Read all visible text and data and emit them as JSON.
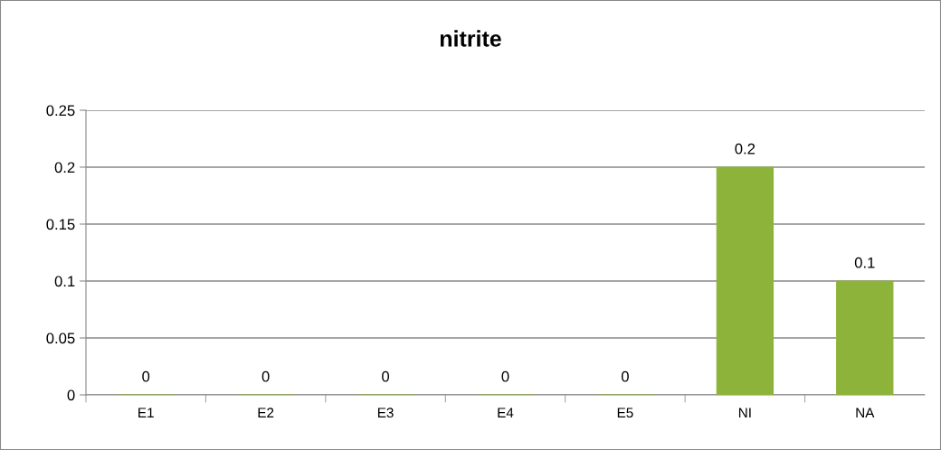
{
  "chart_data": {
    "type": "bar",
    "title": "nitrite",
    "categories": [
      "E1",
      "E2",
      "E3",
      "E4",
      "E5",
      "NI",
      "NA"
    ],
    "values": [
      0,
      0,
      0,
      0,
      0,
      0.2,
      0.1
    ],
    "color": "#8db33a",
    "ylim": [
      0,
      0.25
    ],
    "yticks": [
      0,
      0.05,
      0.1,
      0.15,
      0.2,
      0.25
    ],
    "grid": "y",
    "data_labels": true
  }
}
